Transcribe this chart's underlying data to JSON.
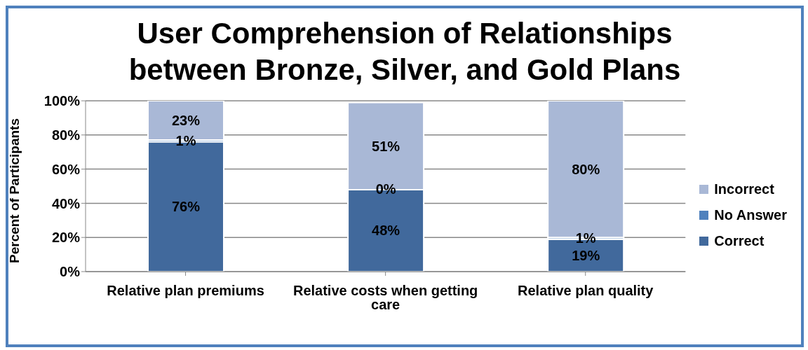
{
  "chart_data": {
    "type": "bar",
    "title": "User Comprehension of Relationships between Bronze, Silver, and Gold Plans",
    "ylabel": "Percent of Participants",
    "categories": [
      "Relative plan premiums",
      "Relative costs when getting care",
      "Relative plan quality"
    ],
    "stacked": true,
    "series": [
      {
        "name": "Correct",
        "color": "#41699c",
        "values": [
          76,
          48,
          19
        ],
        "value_labels": [
          "76%",
          "48%",
          "19%"
        ]
      },
      {
        "name": "No Answer",
        "color": "#4f81bd",
        "values": [
          1,
          0,
          1
        ],
        "value_labels": [
          "1%",
          "0%",
          "1%"
        ]
      },
      {
        "name": "Incorrect",
        "color": "#a9b8d6",
        "values": [
          23,
          51,
          80
        ],
        "value_labels": [
          "23%",
          "51%",
          "80%"
        ]
      }
    ],
    "ylim": [
      0,
      100
    ],
    "yticks": [
      {
        "value": 0,
        "label": "0%"
      },
      {
        "value": 20,
        "label": "20%"
      },
      {
        "value": 40,
        "label": "40%"
      },
      {
        "value": 60,
        "label": "60%"
      },
      {
        "value": 80,
        "label": "80%"
      },
      {
        "value": 100,
        "label": "100%"
      }
    ],
    "grid": "y",
    "legend": "right"
  }
}
